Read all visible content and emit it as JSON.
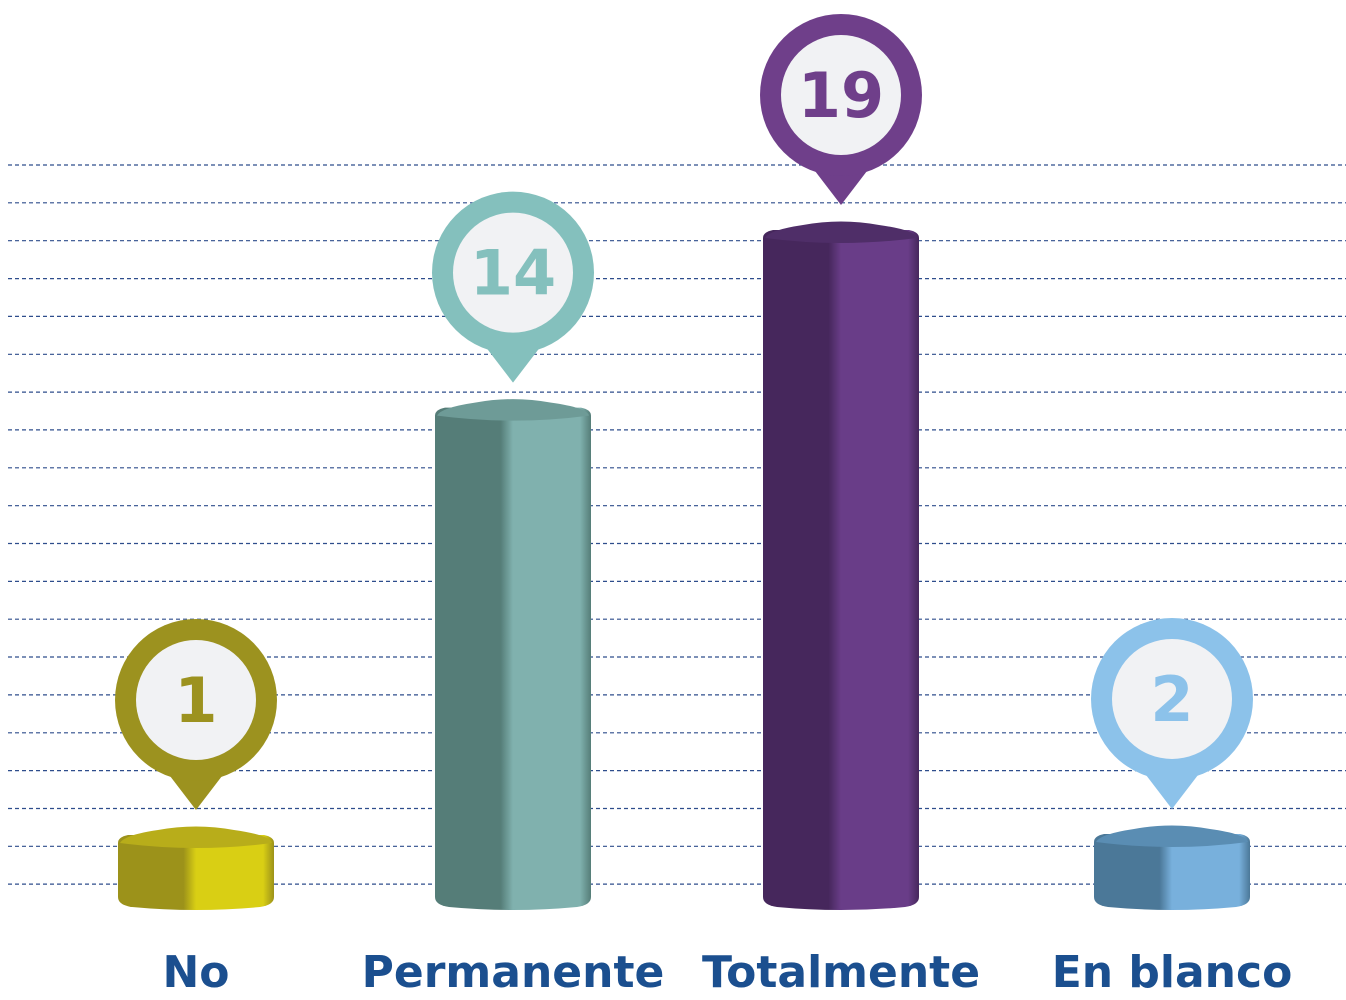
{
  "chart_data": {
    "type": "bar",
    "categories": [
      "No",
      "Permanente",
      "Totalmente",
      "En blanco"
    ],
    "values": [
      1,
      14,
      19,
      2
    ],
    "value_labels": [
      "1",
      "14",
      "19",
      "2"
    ],
    "ylim": [
      0,
      19
    ],
    "grid": true,
    "label_color": "#1b4f8f",
    "grid_color": "#2e4d8c",
    "pin_fill": "#f1f2f4",
    "colors": [
      {
        "light": "#d9cf14",
        "dark": "#9c921a",
        "top": "#b8ad1a",
        "pin": "#9c921f",
        "text": "#9c921f"
      },
      {
        "light": "#80b1ae",
        "dark": "#557d78",
        "top": "#6e9b97",
        "pin": "#84c0bd",
        "text": "#84c0bd"
      },
      {
        "light": "#693d88",
        "dark": "#46275c",
        "top": "#4f2e68",
        "pin": "#6f3f8a",
        "text": "#6f3f8a"
      },
      {
        "light": "#78b0dc",
        "dark": "#4b7898",
        "top": "#5a8db3",
        "pin": "#8cc2ea",
        "text": "#8cc2ea"
      }
    ]
  }
}
